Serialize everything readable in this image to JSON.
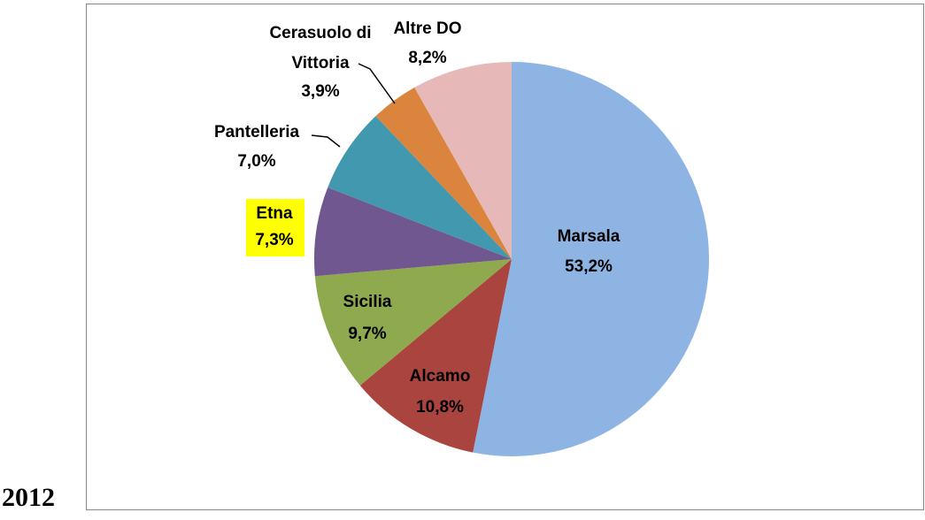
{
  "chart_data": {
    "type": "pie",
    "title": "2012",
    "categories": [
      "Marsala",
      "Alcamo",
      "Sicilia",
      "Etna",
      "Pantelleria",
      "Cerasuolo di Vittoria",
      "Altre DO"
    ],
    "values": [
      53.2,
      10.8,
      9.7,
      7.3,
      7.0,
      3.9,
      8.2
    ],
    "value_labels": [
      "53,2%",
      "10,8%",
      "9,7%",
      "7,3%",
      "7,0%",
      "3,9%",
      "8,2%"
    ],
    "colors": [
      "#8eb4e3",
      "#a9443f",
      "#8fa94f",
      "#71578f",
      "#4198af",
      "#db843d",
      "#e6b9b8"
    ],
    "highlight": {
      "category": 3,
      "color": "#ffff00"
    }
  }
}
